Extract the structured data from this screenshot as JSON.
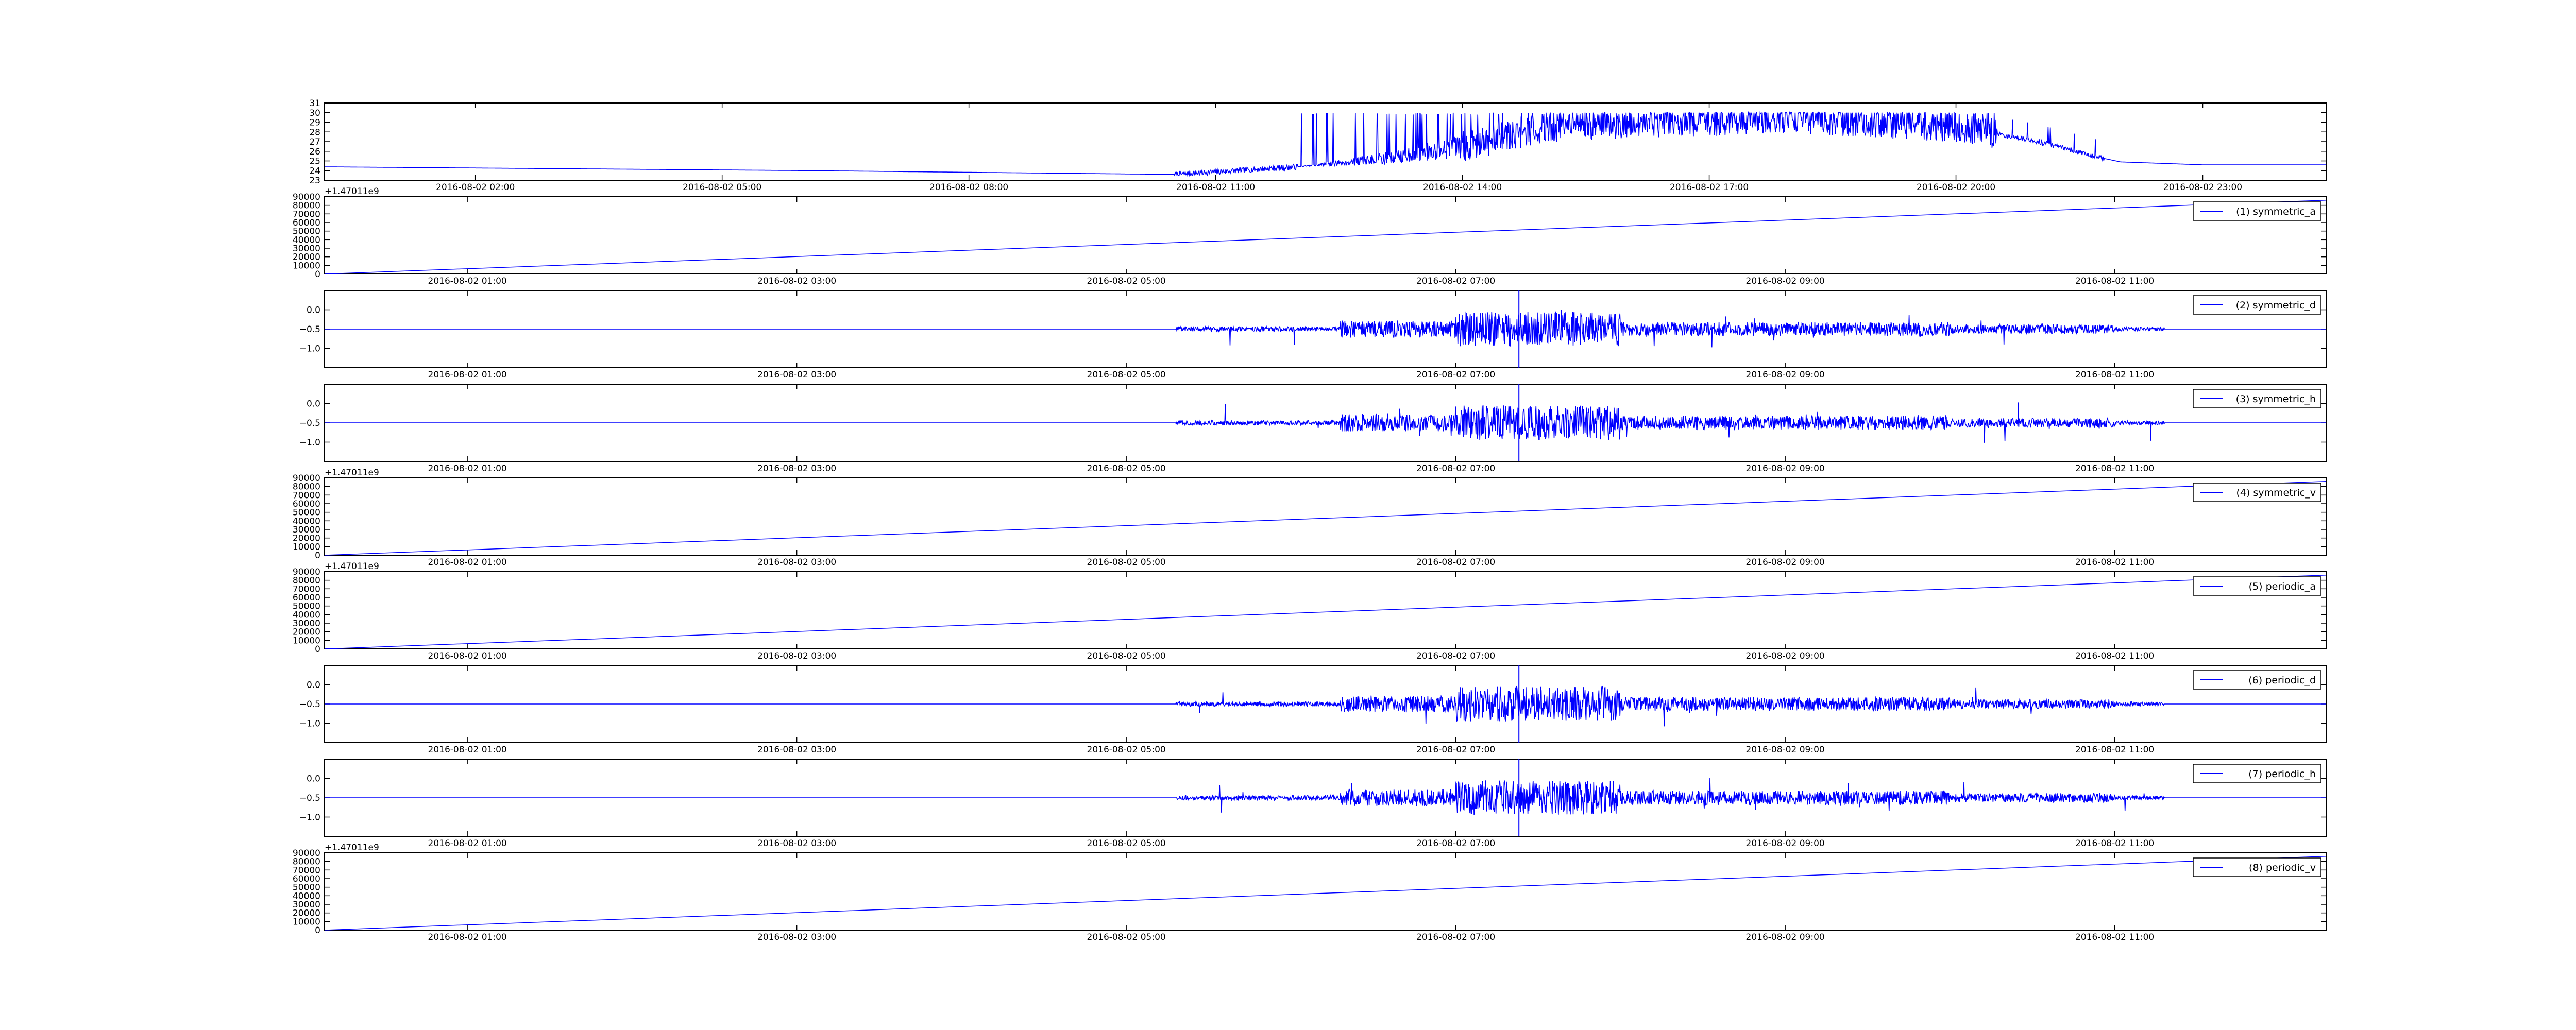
{
  "chart_data": [
    {
      "type": "line",
      "panel": 1,
      "ylim": [
        23,
        31
      ],
      "yticks": [
        "23",
        "24",
        "25",
        "26",
        "27",
        "28",
        "29",
        "30",
        "31"
      ],
      "xticks": [
        "2016-08-02 02:00",
        "2016-08-02 05:00",
        "2016-08-02 08:00",
        "2016-08-02 11:00",
        "2016-08-02 14:00",
        "2016-08-02 17:00",
        "2016-08-02 20:00",
        "2016-08-02 23:00"
      ],
      "offset_label": "",
      "legend": "",
      "series_color": "#0000ff",
      "series": [
        {
          "shape": "temperature",
          "x": [
            "2016-08-02 00:00",
            "2016-08-02 06:00",
            "2016-08-02 10:30",
            "2016-08-02 12:00",
            "2016-08-02 13:00",
            "2016-08-02 14:00",
            "2016-08-02 15:00",
            "2016-08-02 18:00",
            "2016-08-02 20:00",
            "2016-08-02 21:00",
            "2016-08-02 21:40",
            "2016-08-02 22:00",
            "2016-08-02 23:00",
            "2016-08-03 00:10"
          ],
          "values": [
            24.4,
            24.0,
            23.6,
            24.4,
            25.2,
            26.5,
            28.5,
            29.5,
            28.5,
            27.0,
            25.5,
            24.9,
            24.6,
            24.6
          ]
        }
      ]
    },
    {
      "type": "line",
      "panel": 2,
      "ylim": [
        0,
        90000
      ],
      "yticks": [
        "0",
        "10000",
        "20000",
        "30000",
        "40000",
        "50000",
        "60000",
        "70000",
        "80000",
        "90000"
      ],
      "xticks": [
        "2016-08-02 01:00",
        "2016-08-02 03:00",
        "2016-08-02 05:00",
        "2016-08-02 07:00",
        "2016-08-02 09:00",
        "2016-08-02 11:00"
      ],
      "offset_label": "+1.47011e9",
      "legend": "(1) symmetric_a",
      "series_color": "#0000ff",
      "series": [
        {
          "shape": "ramp",
          "name": "(1) symmetric_a",
          "x": [
            "2016-08-02 00:08",
            "2016-08-02 12:17"
          ],
          "values": [
            0,
            86000
          ]
        }
      ]
    },
    {
      "type": "line",
      "panel": 3,
      "ylim": [
        -1.5,
        0.5
      ],
      "yticks": [
        "−1.0",
        "−0.5",
        "0.0"
      ],
      "xticks": [
        "2016-08-02 01:00",
        "2016-08-02 03:00",
        "2016-08-02 05:00",
        "2016-08-02 07:00",
        "2016-08-02 09:00",
        "2016-08-02 11:00"
      ],
      "offset_label": "",
      "legend": "(2) symmetric_d",
      "series_color": "#0000ff",
      "series": [
        {
          "shape": "noise",
          "name": "(2) symmetric_d",
          "baseline": -0.5,
          "seed": 11
        }
      ]
    },
    {
      "type": "line",
      "panel": 4,
      "ylim": [
        -1.5,
        0.5
      ],
      "yticks": [
        "−1.0",
        "−0.5",
        "0.0"
      ],
      "xticks": [
        "2016-08-02 01:00",
        "2016-08-02 03:00",
        "2016-08-02 05:00",
        "2016-08-02 07:00",
        "2016-08-02 09:00",
        "2016-08-02 11:00"
      ],
      "offset_label": "",
      "legend": "(3) symmetric_h",
      "series_color": "#0000ff",
      "series": [
        {
          "shape": "noise",
          "name": "(3) symmetric_h",
          "baseline": -0.5,
          "seed": 23
        }
      ]
    },
    {
      "type": "line",
      "panel": 5,
      "ylim": [
        0,
        90000
      ],
      "yticks": [
        "0",
        "10000",
        "20000",
        "30000",
        "40000",
        "50000",
        "60000",
        "70000",
        "80000",
        "90000"
      ],
      "xticks": [
        "2016-08-02 01:00",
        "2016-08-02 03:00",
        "2016-08-02 05:00",
        "2016-08-02 07:00",
        "2016-08-02 09:00",
        "2016-08-02 11:00"
      ],
      "offset_label": "+1.47011e9",
      "legend": "(4) symmetric_v",
      "series_color": "#0000ff",
      "series": [
        {
          "shape": "ramp",
          "name": "(4) symmetric_v",
          "x": [
            "2016-08-02 00:08",
            "2016-08-02 12:17"
          ],
          "values": [
            0,
            86000
          ]
        }
      ]
    },
    {
      "type": "line",
      "panel": 6,
      "ylim": [
        0,
        90000
      ],
      "yticks": [
        "0",
        "10000",
        "20000",
        "30000",
        "40000",
        "50000",
        "60000",
        "70000",
        "80000",
        "90000"
      ],
      "xticks": [
        "2016-08-02 01:00",
        "2016-08-02 03:00",
        "2016-08-02 05:00",
        "2016-08-02 07:00",
        "2016-08-02 09:00",
        "2016-08-02 11:00"
      ],
      "offset_label": "+1.47011e9",
      "legend": "(5) periodic_a",
      "series_color": "#0000ff",
      "series": [
        {
          "shape": "ramp",
          "name": "(5) periodic_a",
          "x": [
            "2016-08-02 00:08",
            "2016-08-02 12:17"
          ],
          "values": [
            0,
            86000
          ]
        }
      ]
    },
    {
      "type": "line",
      "panel": 7,
      "ylim": [
        -1.5,
        0.5
      ],
      "yticks": [
        "−1.0",
        "−0.5",
        "0.0"
      ],
      "xticks": [
        "2016-08-02 01:00",
        "2016-08-02 03:00",
        "2016-08-02 05:00",
        "2016-08-02 07:00",
        "2016-08-02 09:00",
        "2016-08-02 11:00"
      ],
      "offset_label": "",
      "legend": "(6) periodic_d",
      "series_color": "#0000ff",
      "series": [
        {
          "shape": "noise",
          "name": "(6) periodic_d",
          "baseline": -0.5,
          "seed": 37
        }
      ]
    },
    {
      "type": "line",
      "panel": 8,
      "ylim": [
        -1.5,
        0.5
      ],
      "yticks": [
        "−1.0",
        "−0.5",
        "0.0"
      ],
      "xticks": [
        "2016-08-02 01:00",
        "2016-08-02 03:00",
        "2016-08-02 05:00",
        "2016-08-02 07:00",
        "2016-08-02 09:00",
        "2016-08-02 11:00"
      ],
      "offset_label": "",
      "legend": "(7) periodic_h",
      "series_color": "#0000ff",
      "series": [
        {
          "shape": "noise",
          "name": "(7) periodic_h",
          "baseline": -0.5,
          "seed": 53
        }
      ]
    },
    {
      "type": "line",
      "panel": 9,
      "ylim": [
        0,
        90000
      ],
      "yticks": [
        "0",
        "10000",
        "20000",
        "30000",
        "40000",
        "50000",
        "60000",
        "70000",
        "80000",
        "90000"
      ],
      "xticks": [
        "2016-08-02 01:00",
        "2016-08-02 03:00",
        "2016-08-02 05:00",
        "2016-08-02 07:00",
        "2016-08-02 09:00",
        "2016-08-02 11:00"
      ],
      "offset_label": "+1.47011e9",
      "legend": "(8) periodic_v",
      "series_color": "#0000ff",
      "series": [
        {
          "shape": "ramp",
          "name": "(8) periodic_v",
          "x": [
            "2016-08-02 00:08",
            "2016-08-02 12:17"
          ],
          "values": [
            0,
            86000
          ]
        }
      ]
    }
  ]
}
